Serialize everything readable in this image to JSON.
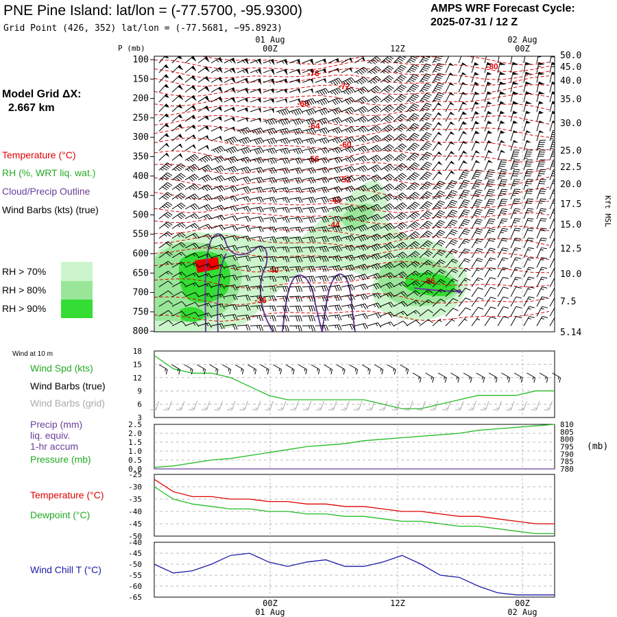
{
  "header": {
    "title": "PNE Pine Island:  lat/lon = (-77.5700, -95.9300)",
    "gridpoint": "Grid Point (426, 352) lat/lon = (-77.5681, −95.8923)",
    "cycle_line1": "AMPS WRF Forecast Cycle:",
    "cycle_line2": "2025-07-31 / 12  Z"
  },
  "sidebar": {
    "model_grid_line1": "Model Grid ΔX:",
    "model_grid_line2": "2.667 km",
    "legend_temperature": "Temperature (°C)",
    "legend_rh": "RH (%, WRT liq. wat.)",
    "legend_cloud": "Cloud/Precip Outline",
    "legend_wind": "Wind Barbs (kts) (true)",
    "rh70": "RH > 70%",
    "rh80": "RH > 80%",
    "rh90": "RH > 90%"
  },
  "colors": {
    "temperature": "#e00000",
    "rh70": "#ccf5cc",
    "rh80": "#99e699",
    "rh90": "#33dd33",
    "cloud": "#6a3d9a",
    "wind_chill": "#1a1aa8",
    "dewpoint": "#22bb22",
    "wind_speed": "#22bb22",
    "barbs_grid": "#aaaaaa"
  },
  "time_axis": {
    "top_labels": [
      {
        "date": "01 Aug",
        "hour": "00Z"
      },
      {
        "date": "",
        "hour": "12Z"
      },
      {
        "date": "02 Aug",
        "hour": "00Z"
      }
    ],
    "bottom_labels": [
      {
        "hour": "00Z",
        "date": "01 Aug"
      },
      {
        "hour": "12Z",
        "date": ""
      },
      {
        "hour": "00Z",
        "date": "02 Aug"
      }
    ]
  },
  "chart_data": [
    {
      "type": "heatmap",
      "title": "",
      "ylabel": "P (mb)",
      "y2label": "Kft MSL",
      "pressure_ticks": [
        "100",
        "150",
        "200",
        "250",
        "300",
        "350",
        "400",
        "450",
        "500",
        "550",
        "600",
        "650",
        "700",
        "750",
        "800"
      ],
      "kft_ticks": [
        "50.0",
        "45.0",
        "40.0",
        "35.0",
        "30.0",
        "25.0",
        "22.5",
        "20.0",
        "17.5",
        "15.0",
        "12.5",
        "10.0",
        "7.5",
        "5.14"
      ],
      "temperature_contour_labels": [
        "-76",
        "-72",
        "-68",
        "-64",
        "-60",
        "-56",
        "-52",
        "-48",
        "-44",
        "-40",
        "-36",
        "-36",
        "-80"
      ],
      "series": [
        {
          "name": "Temperature (°C)"
        },
        {
          "name": "RH (%, WRT liq. wat.)"
        },
        {
          "name": "Cloud/Precip Outline"
        },
        {
          "name": "Wind Barbs (kts) (true)"
        }
      ]
    },
    {
      "type": "line",
      "title": "Wind at 10 m",
      "y_ticks": [
        "18",
        "15",
        "12",
        "9",
        "6",
        "3"
      ],
      "ylim": [
        3,
        18
      ],
      "series": [
        {
          "name": "Wind Spd (kts)",
          "values": [
            17,
            14,
            13,
            13,
            12,
            10,
            8,
            7,
            7,
            7,
            7,
            7,
            6,
            5,
            5,
            6,
            7,
            8,
            8,
            8,
            9,
            9
          ]
        },
        {
          "name": "Wind Barbs (true)"
        },
        {
          "name": "Wind Barbs (grid)"
        }
      ]
    },
    {
      "type": "line",
      "title": "",
      "y_ticks": [
        "2.5",
        "2.0",
        "1.5",
        "1.0",
        "0.5",
        "0.0"
      ],
      "y2_ticks": [
        "810",
        "805",
        "800",
        "795",
        "790",
        "785",
        "780"
      ],
      "y2_unit": "(mb)",
      "series": [
        {
          "name": "Precip (mm) liq. equiv. 1-hr accum",
          "values": [
            0.0,
            0.0,
            0.0,
            0.0,
            0.0,
            0.0,
            0.0,
            0.0,
            0.0,
            0.0,
            0.0,
            0.0,
            0.0,
            0.0,
            0.0,
            0.0,
            0.0,
            0.0,
            0.0,
            0.0,
            0.0,
            0.0
          ]
        },
        {
          "name": "Pressure (mb)",
          "values": [
            781,
            782,
            784,
            786,
            787,
            789,
            791,
            793,
            795,
            796,
            797,
            799,
            800,
            801,
            802,
            803,
            804,
            806,
            807,
            808,
            809,
            810
          ]
        }
      ],
      "ylim": [
        0,
        2.5
      ],
      "y2lim": [
        780,
        810
      ]
    },
    {
      "type": "line",
      "title": "",
      "y_ticks": [
        "-25",
        "-30",
        "-35",
        "-40",
        "-45",
        "-50"
      ],
      "ylim": [
        -50,
        -25
      ],
      "series": [
        {
          "name": "Temperature (°C)",
          "values": [
            -27,
            -32,
            -34,
            -34,
            -35,
            -35,
            -36,
            -36,
            -37,
            -37,
            -38,
            -38,
            -39,
            -40,
            -40,
            -41,
            -42,
            -42,
            -43,
            -44,
            -45,
            -45
          ]
        },
        {
          "name": "Dewpoint (°C)",
          "values": [
            -30,
            -35,
            -37,
            -38,
            -39,
            -39,
            -40,
            -40,
            -41,
            -41,
            -42,
            -42,
            -43,
            -44,
            -44,
            -45,
            -46,
            -46,
            -47,
            -48,
            -49,
            -49
          ]
        }
      ]
    },
    {
      "type": "line",
      "title": "",
      "y_ticks": [
        "-40",
        "-45",
        "-50",
        "-55",
        "-60",
        "-65"
      ],
      "ylim": [
        -65,
        -40
      ],
      "series": [
        {
          "name": "Wind Chill T (°C)",
          "values": [
            -50,
            -54,
            -53,
            -50,
            -46,
            -45,
            -49,
            -51,
            -49,
            -48,
            -51,
            -51,
            -49,
            -46,
            -50,
            -55,
            -56,
            -60,
            -63,
            -64,
            -64,
            -64
          ]
        }
      ]
    }
  ]
}
